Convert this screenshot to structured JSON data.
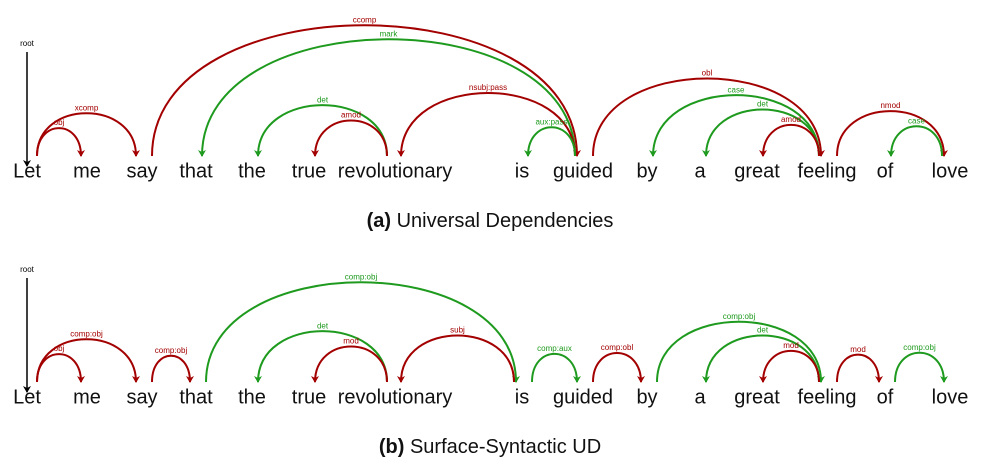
{
  "panels": [
    {
      "words": [
        "Let",
        "me",
        "say",
        "that",
        "the",
        "true",
        "revolutionary",
        "is",
        "guided",
        "by",
        "a",
        "great",
        "feeling",
        "of",
        "love"
      ],
      "root": {
        "label": "root",
        "word": 0
      },
      "arcs": [
        {
          "label": "obj",
          "head": 0,
          "dep": 1,
          "color": "#a30000"
        },
        {
          "label": "xcomp",
          "head": 0,
          "dep": 2,
          "color": "#a30000"
        },
        {
          "label": "ccomp",
          "head": 2,
          "dep": 8,
          "color": "#a30000"
        },
        {
          "label": "mark",
          "head": 8,
          "dep": 3,
          "color": "#1e9a1e"
        },
        {
          "label": "det",
          "head": 6,
          "dep": 4,
          "color": "#1e9a1e"
        },
        {
          "label": "amod",
          "head": 6,
          "dep": 5,
          "color": "#a30000"
        },
        {
          "label": "nsubj:pass",
          "head": 8,
          "dep": 6,
          "color": "#a30000"
        },
        {
          "label": "aux:pass",
          "head": 8,
          "dep": 7,
          "color": "#1e9a1e"
        },
        {
          "label": "obl",
          "head": 8,
          "dep": 12,
          "color": "#a30000"
        },
        {
          "label": "case",
          "head": 12,
          "dep": 9,
          "color": "#1e9a1e"
        },
        {
          "label": "det",
          "head": 12,
          "dep": 10,
          "color": "#1e9a1e"
        },
        {
          "label": "amod",
          "head": 12,
          "dep": 11,
          "color": "#a30000"
        },
        {
          "label": "nmod",
          "head": 12,
          "dep": 14,
          "color": "#a30000"
        },
        {
          "label": "case",
          "head": 14,
          "dep": 13,
          "color": "#1e9a1e"
        }
      ],
      "caption": {
        "label": "(a)",
        "text": "Universal Dependencies"
      }
    },
    {
      "words": [
        "Let",
        "me",
        "say",
        "that",
        "the",
        "true",
        "revolutionary",
        "is",
        "guided",
        "by",
        "a",
        "great",
        "feeling",
        "of",
        "love"
      ],
      "root": {
        "label": "root",
        "word": 0
      },
      "arcs": [
        {
          "label": "obj",
          "head": 0,
          "dep": 1,
          "color": "#a30000"
        },
        {
          "label": "comp:obj",
          "head": 0,
          "dep": 2,
          "color": "#a30000"
        },
        {
          "label": "comp:obj",
          "head": 2,
          "dep": 3,
          "color": "#a30000"
        },
        {
          "label": "comp:obj",
          "head": 3,
          "dep": 7,
          "color": "#1e9a1e"
        },
        {
          "label": "det",
          "head": 6,
          "dep": 4,
          "color": "#1e9a1e"
        },
        {
          "label": "mod",
          "head": 6,
          "dep": 5,
          "color": "#a30000"
        },
        {
          "label": "subj",
          "head": 7,
          "dep": 6,
          "color": "#a30000"
        },
        {
          "label": "comp:aux",
          "head": 7,
          "dep": 8,
          "color": "#1e9a1e"
        },
        {
          "label": "comp:obl",
          "head": 8,
          "dep": 9,
          "color": "#a30000"
        },
        {
          "label": "comp:obj",
          "head": 9,
          "dep": 12,
          "color": "#1e9a1e"
        },
        {
          "label": "det",
          "head": 12,
          "dep": 10,
          "color": "#1e9a1e"
        },
        {
          "label": "mod",
          "head": 12,
          "dep": 11,
          "color": "#a30000"
        },
        {
          "label": "mod",
          "head": 12,
          "dep": 13,
          "color": "#a30000"
        },
        {
          "label": "comp:obj",
          "head": 13,
          "dep": 14,
          "color": "#1e9a1e"
        }
      ],
      "caption": {
        "label": "(b)",
        "text": "Surface-Syntactic UD"
      }
    }
  ]
}
